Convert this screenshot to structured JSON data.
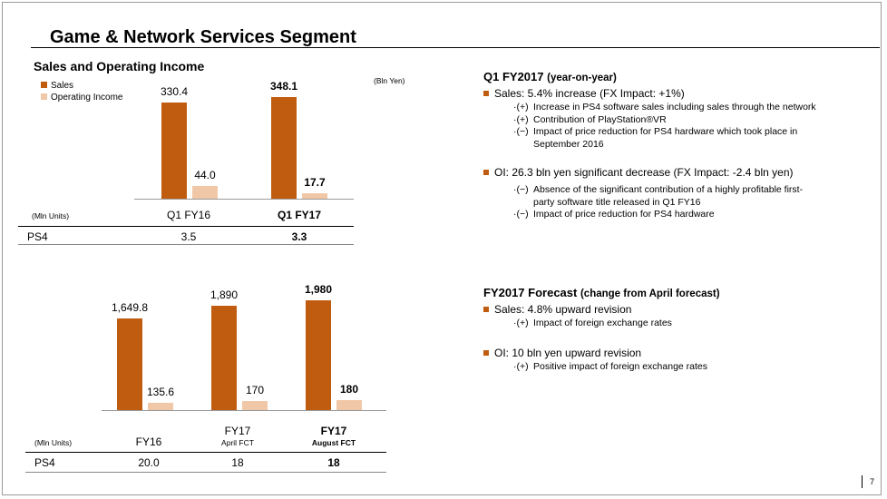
{
  "title": "Game & Network Services Segment",
  "section_title": "Sales and Operating Income",
  "legend": {
    "sales": "Sales",
    "oi": "Operating Income"
  },
  "unit_bln": "(Bln Yen)",
  "chart_data": [
    {
      "type": "bar",
      "categories": [
        "Q1 FY16",
        "Q1 FY17"
      ],
      "series": [
        {
          "name": "Sales",
          "values": [
            330.4,
            348.1
          ]
        },
        {
          "name": "Operating Income",
          "values": [
            44.0,
            17.7
          ]
        }
      ],
      "value_labels": {
        "sales": [
          "330.4",
          "348.1"
        ],
        "oi": [
          "44.0",
          "17.7"
        ]
      }
    },
    {
      "type": "bar",
      "categories": [
        "FY16",
        "FY17",
        "FY17"
      ],
      "category_sublabels": [
        "",
        "April FCT",
        "August FCT"
      ],
      "series": [
        {
          "name": "Sales",
          "values": [
            1649.8,
            1890,
            1980
          ]
        },
        {
          "name": "Operating Income",
          "values": [
            135.6,
            170,
            180
          ]
        }
      ],
      "value_labels": {
        "sales": [
          "1,649.8",
          "1,890",
          "1,980"
        ],
        "oi": [
          "135.6",
          "170",
          "180"
        ]
      }
    }
  ],
  "top_table": {
    "units_label": "(Mln Units)",
    "row_label": "PS4",
    "values": [
      "3.5",
      "3.3"
    ]
  },
  "bottom_table": {
    "units_label": "(Mln Units)",
    "row_label": "PS4",
    "values": [
      "20.0",
      "18",
      "18"
    ]
  },
  "q1": {
    "heading": "Q1 FY2017",
    "heading_tail": "(year-on-year)",
    "sales_line": "Sales: 5.4% increase (FX Impact:  +1%)",
    "sales_details": [
      {
        "mark": "·(+)",
        "text": "Increase in PS4 software sales including sales through the network"
      },
      {
        "mark": "·(+)",
        "text": "Contribution of PlayStation®VR"
      },
      {
        "mark": "·(−)",
        "text": "Impact of price reduction for PS4 hardware which took place in"
      },
      {
        "mark": "",
        "text": "September 2016"
      }
    ],
    "oi_line": "OI: 26.3 bln yen significant decrease (FX Impact:  -2.4 bln yen)",
    "oi_details": [
      {
        "mark": "·(−)",
        "text": "Absence of the significant contribution of a highly profitable first-"
      },
      {
        "mark": "",
        "text": "party software title released in Q1 FY16"
      },
      {
        "mark": "·(−)",
        "text": "Impact of price reduction for PS4 hardware"
      }
    ]
  },
  "forecast": {
    "heading": "FY2017 Forecast",
    "heading_tail": "(change from April forecast)",
    "sales_line": "Sales: 4.8% upward revision",
    "sales_details": [
      {
        "mark": "·(+)",
        "text": "Impact of foreign exchange rates"
      }
    ],
    "oi_line": "OI: 10 bln yen upward revision",
    "oi_details": [
      {
        "mark": "·(+)",
        "text": "Positive impact of foreign exchange rates"
      }
    ]
  },
  "page_number": "7"
}
